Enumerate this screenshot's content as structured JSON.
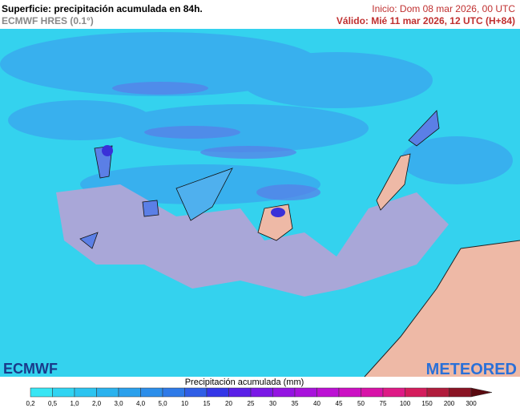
{
  "header": {
    "title": "Superficie: precipitación acumulada en 84h.",
    "model": "ECMWF HRES (0.1°)",
    "init": "Inicio: Dom 08 mar 2026, 00 UTC",
    "valid": "Válido: Mié 11 mar 2026, 12 UTC (H+84)"
  },
  "logos": {
    "left": "ECMWF",
    "right": "METEORED"
  },
  "legend": {
    "title": "Precipitación acumulada (mm)",
    "labels": [
      "0,2",
      "0,5",
      "1,0",
      "2,0",
      "3,0",
      "4,0",
      "5,0",
      "10",
      "15",
      "20",
      "25",
      "30",
      "35",
      "40",
      "45",
      "50",
      "75",
      "100",
      "150",
      "200",
      "300"
    ],
    "colors": [
      "#38e6f4",
      "#30d4f2",
      "#2cc4f0",
      "#2ab2ee",
      "#2aa0ec",
      "#2c8eea",
      "#2e7ae8",
      "#2f5ee6",
      "#3436e8",
      "#5a20e8",
      "#7a18e6",
      "#9414e2",
      "#a812dc",
      "#bc10d4",
      "#cc10c4",
      "#d812a8",
      "#de1a86",
      "#d41c5c",
      "#b01c3c",
      "#8a1424",
      "#5a0a10"
    ]
  }
}
